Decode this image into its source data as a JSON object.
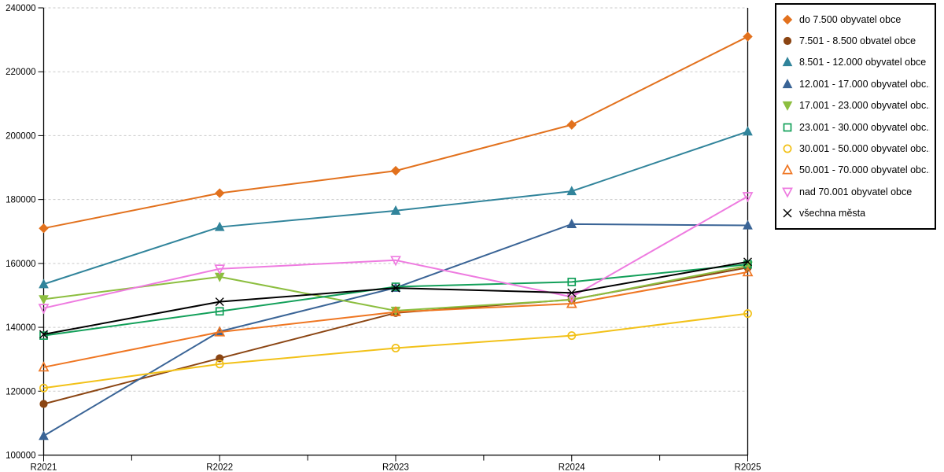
{
  "chart_data": {
    "type": "line",
    "categories": [
      "R2021",
      "R2022",
      "R2023",
      "R2024",
      "R2025"
    ],
    "ylim": [
      100000,
      240000
    ],
    "y_ticks": [
      100000,
      120000,
      140000,
      160000,
      180000,
      200000,
      220000,
      240000
    ],
    "xlabel": "",
    "ylabel": "",
    "grid": "horizontal-dashed",
    "grid_color": "#c9c9c9",
    "legend_position": "top-right-outside",
    "x_minor_ticks_between_categories": true,
    "series": [
      {
        "label": "do 7.500 obyvatel obce",
        "color": "#e2711d",
        "marker": "diamond",
        "filled": true,
        "values": [
          171000,
          182000,
          189000,
          203400,
          231000
        ]
      },
      {
        "label": "7.501 - 8.500 obvatel obce",
        "color": "#8b4513",
        "marker": "circle",
        "filled": true,
        "values": [
          116000,
          130300,
          144500,
          148700,
          158700
        ]
      },
      {
        "label": "8.501 - 12.000 obyvatel obce",
        "color": "#31849b",
        "marker": "triangle-up",
        "filled": true,
        "values": [
          153500,
          171400,
          176500,
          182600,
          201300
        ]
      },
      {
        "label": "12.001 - 17.000 obyvatel obc...",
        "color": "#3a6496",
        "marker": "triangle-up",
        "filled": true,
        "values": [
          106000,
          138700,
          152400,
          172300,
          171900
        ]
      },
      {
        "label": "17.001 - 23.000 obyvatel obc...",
        "color": "#8cbe3f",
        "marker": "triangle-down",
        "filled": true,
        "values": [
          148800,
          155800,
          145200,
          148600,
          159300
        ]
      },
      {
        "label": "23.001 - 30.000 obyvatel obc...",
        "color": "#13a05a",
        "marker": "square",
        "filled": false,
        "values": [
          137400,
          145000,
          152700,
          154200,
          159700
        ]
      },
      {
        "label": "30.001 - 50.000 obyvatel obc...",
        "color": "#f2c118",
        "marker": "circle",
        "filled": false,
        "values": [
          121000,
          128500,
          133500,
          137400,
          144300
        ]
      },
      {
        "label": "50.001 - 70.000 obyvatel obc...",
        "color": "#ef7622",
        "marker": "triangle-up",
        "filled": false,
        "values": [
          127500,
          138500,
          144800,
          147400,
          157300
        ]
      },
      {
        "label": "nad 70.001 obyvatel obce",
        "color": "#ee7be0",
        "marker": "triangle-down",
        "filled": false,
        "values": [
          146000,
          158300,
          161000,
          149500,
          181000
        ]
      },
      {
        "label": "všechna města",
        "color": "#000000",
        "marker": "x",
        "filled": false,
        "values": [
          137800,
          148000,
          152300,
          150800,
          160500
        ]
      }
    ]
  }
}
